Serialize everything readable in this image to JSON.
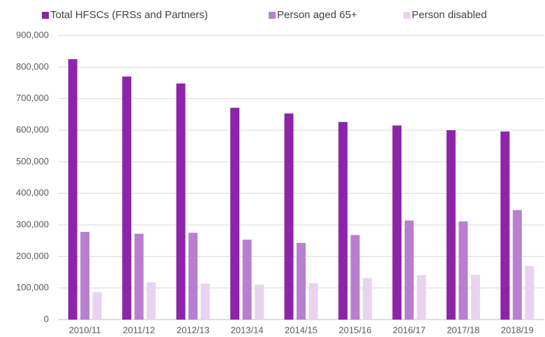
{
  "chart_data": {
    "type": "bar",
    "categories": [
      "2010/11",
      "2011/12",
      "2012/13",
      "2013/14",
      "2014/15",
      "2015/16",
      "2016/17",
      "2017/18",
      "2018/19"
    ],
    "series": [
      {
        "name": "Total HFSCs (FRSs and Partners)",
        "color": "#8e24aa",
        "values": [
          825000,
          770000,
          748000,
          671000,
          653000,
          626000,
          615000,
          600000,
          596000
        ]
      },
      {
        "name": "Person aged 65+",
        "color": "#b87fd0",
        "values": [
          278000,
          272000,
          275000,
          253000,
          243000,
          268000,
          314000,
          311000,
          347000
        ]
      },
      {
        "name": "Person disabled",
        "color": "#e9d3f0",
        "values": [
          87000,
          118000,
          114000,
          111000,
          115000,
          131000,
          141000,
          142000,
          170000
        ]
      }
    ],
    "ylim": [
      0,
      900000
    ],
    "yticks": [
      0,
      {
        "value": 100000,
        "label": "100,000"
      },
      {
        "value": 200000,
        "label": "200,000"
      },
      {
        "value": 300000,
        "label": "300,000"
      },
      {
        "value": 400000,
        "label": "400,000"
      },
      {
        "value": 500000,
        "label": "500,000"
      },
      {
        "value": 600000,
        "label": "600,000"
      },
      {
        "value": 700000,
        "label": "700,000"
      },
      {
        "value": 800000,
        "label": "800,000"
      },
      {
        "value": 900000,
        "label": "900,000"
      }
    ],
    "grid": true,
    "legend": "top"
  }
}
